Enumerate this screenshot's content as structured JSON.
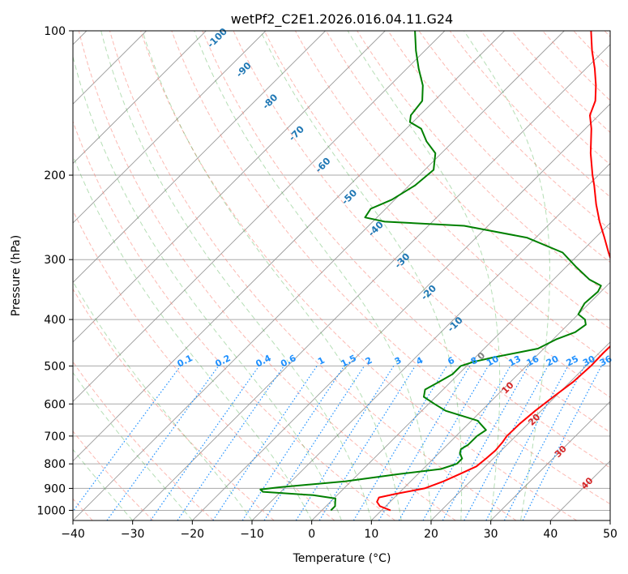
{
  "chart_data": {
    "type": "line",
    "title": "wetPf2_C2E1.2026.016.04.11.G24",
    "xlabel": "Temperature (°C)",
    "ylabel": "Pressure (hPa)",
    "xlim": [
      -40,
      50
    ],
    "ylim": [
      1050,
      100
    ],
    "x_ticks": [
      -40,
      -30,
      -20,
      -10,
      0,
      10,
      20,
      30,
      40,
      50
    ],
    "y_ticks": [
      100,
      200,
      300,
      400,
      500,
      600,
      700,
      800,
      900,
      1000
    ],
    "series": [
      {
        "name": "Temperature",
        "color": "#ff0000",
        "points": [
          [
            1000,
            11.5
          ],
          [
            980,
            9.0
          ],
          [
            960,
            7.8
          ],
          [
            940,
            7.4
          ],
          [
            925,
            9.5
          ],
          [
            900,
            13.5
          ],
          [
            870,
            15.5
          ],
          [
            840,
            17.0
          ],
          [
            810,
            18.5
          ],
          [
            780,
            18.8
          ],
          [
            750,
            19.0
          ],
          [
            720,
            18.8
          ],
          [
            700,
            18.5
          ],
          [
            660,
            18.6
          ],
          [
            620,
            19.0
          ],
          [
            580,
            19.7
          ],
          [
            540,
            20.5
          ],
          [
            500,
            20.8
          ],
          [
            470,
            20.7
          ],
          [
            440,
            20.8
          ],
          [
            420,
            20.5
          ],
          [
            400,
            19.2
          ],
          [
            380,
            17.3
          ],
          [
            360,
            15.3
          ],
          [
            345,
            13.3
          ],
          [
            330,
            10.9
          ],
          [
            310,
            7.8
          ],
          [
            290,
            4.7
          ],
          [
            270,
            1.5
          ],
          [
            250,
            -2.0
          ],
          [
            230,
            -5.5
          ],
          [
            210,
            -9.0
          ],
          [
            200,
            -11.0
          ],
          [
            180,
            -15.0
          ],
          [
            160,
            -19.0
          ],
          [
            150,
            -21.5
          ],
          [
            140,
            -23.0
          ],
          [
            130,
            -25.5
          ],
          [
            120,
            -28.5
          ],
          [
            110,
            -32.0
          ],
          [
            100,
            -35.5
          ]
        ]
      },
      {
        "name": "Dewpoint",
        "color": "#008000",
        "points": [
          [
            1000,
            1.5
          ],
          [
            980,
            1.5
          ],
          [
            960,
            0.8
          ],
          [
            945,
            0.3
          ],
          [
            930,
            -4.0
          ],
          [
            915,
            -13.0
          ],
          [
            905,
            -13.8
          ],
          [
            895,
            -11.0
          ],
          [
            870,
            -1.0
          ],
          [
            840,
            6.8
          ],
          [
            820,
            13.0
          ],
          [
            800,
            14.8
          ],
          [
            780,
            14.8
          ],
          [
            760,
            13.5
          ],
          [
            745,
            13.0
          ],
          [
            730,
            13.5
          ],
          [
            700,
            13.5
          ],
          [
            680,
            14.0
          ],
          [
            650,
            11.0
          ],
          [
            620,
            4.0
          ],
          [
            600,
            1.0
          ],
          [
            580,
            -2.0
          ],
          [
            560,
            -3.0
          ],
          [
            540,
            -2.0
          ],
          [
            520,
            -1.0
          ],
          [
            500,
            -1.0
          ],
          [
            490,
            0.5
          ],
          [
            480,
            3.0
          ],
          [
            470,
            6.0
          ],
          [
            460,
            9.0
          ],
          [
            440,
            10.5
          ],
          [
            425,
            12.5
          ],
          [
            410,
            13.0
          ],
          [
            400,
            12.0
          ],
          [
            390,
            10.0
          ],
          [
            370,
            9.2
          ],
          [
            350,
            9.5
          ],
          [
            340,
            9.0
          ],
          [
            330,
            6.0
          ],
          [
            310,
            1.5
          ],
          [
            290,
            -3.0
          ],
          [
            270,
            -11.5
          ],
          [
            255,
            -24.0
          ],
          [
            250,
            -38.0
          ],
          [
            245,
            -42.0
          ],
          [
            235,
            -42.5
          ],
          [
            225,
            -40.5
          ],
          [
            210,
            -39.0
          ],
          [
            195,
            -38.5
          ],
          [
            180,
            -41.0
          ],
          [
            170,
            -44.5
          ],
          [
            160,
            -47.5
          ],
          [
            155,
            -50.5
          ],
          [
            150,
            -51.5
          ],
          [
            140,
            -52.0
          ],
          [
            130,
            -54.5
          ],
          [
            120,
            -58.0
          ],
          [
            110,
            -61.5
          ],
          [
            100,
            -65.0
          ]
        ]
      }
    ],
    "dry_adiabat_labels": [
      "-100",
      "-90",
      "-80",
      "-70",
      "-60",
      "-50",
      "-40",
      "-30",
      "-20",
      "-10",
      "0",
      "10",
      "20",
      "30",
      "40"
    ],
    "dry_adiabat_values": [
      -100,
      -90,
      -80,
      -70,
      -60,
      -50,
      -40,
      -30,
      -20,
      -10,
      0,
      10,
      20,
      30,
      40
    ],
    "mixing_ratio_labels": [
      "0.1",
      "0.2",
      "0.4",
      "0.6",
      "1",
      "1.5",
      "2",
      "3",
      "4",
      "6",
      "8",
      "10",
      "13",
      "16",
      "20",
      "25",
      "30",
      "36"
    ],
    "mixing_ratio_values": [
      0.1,
      0.2,
      0.4,
      0.6,
      1,
      1.5,
      2,
      3,
      4,
      6,
      8,
      10,
      13,
      16,
      20,
      25,
      30,
      36
    ],
    "skew": 35,
    "colors": {
      "dry_adiabat": "#fa8072",
      "moist_adiabat": "#2ca02c",
      "mixing_ratio": "#1e90ff",
      "isotherm": "#808080",
      "dry_label_cold": "#1f77b4",
      "dry_label_warm": "#d62728",
      "dry_label_zero": "#7f7f7f",
      "mix_label": "#1e90ff"
    }
  }
}
